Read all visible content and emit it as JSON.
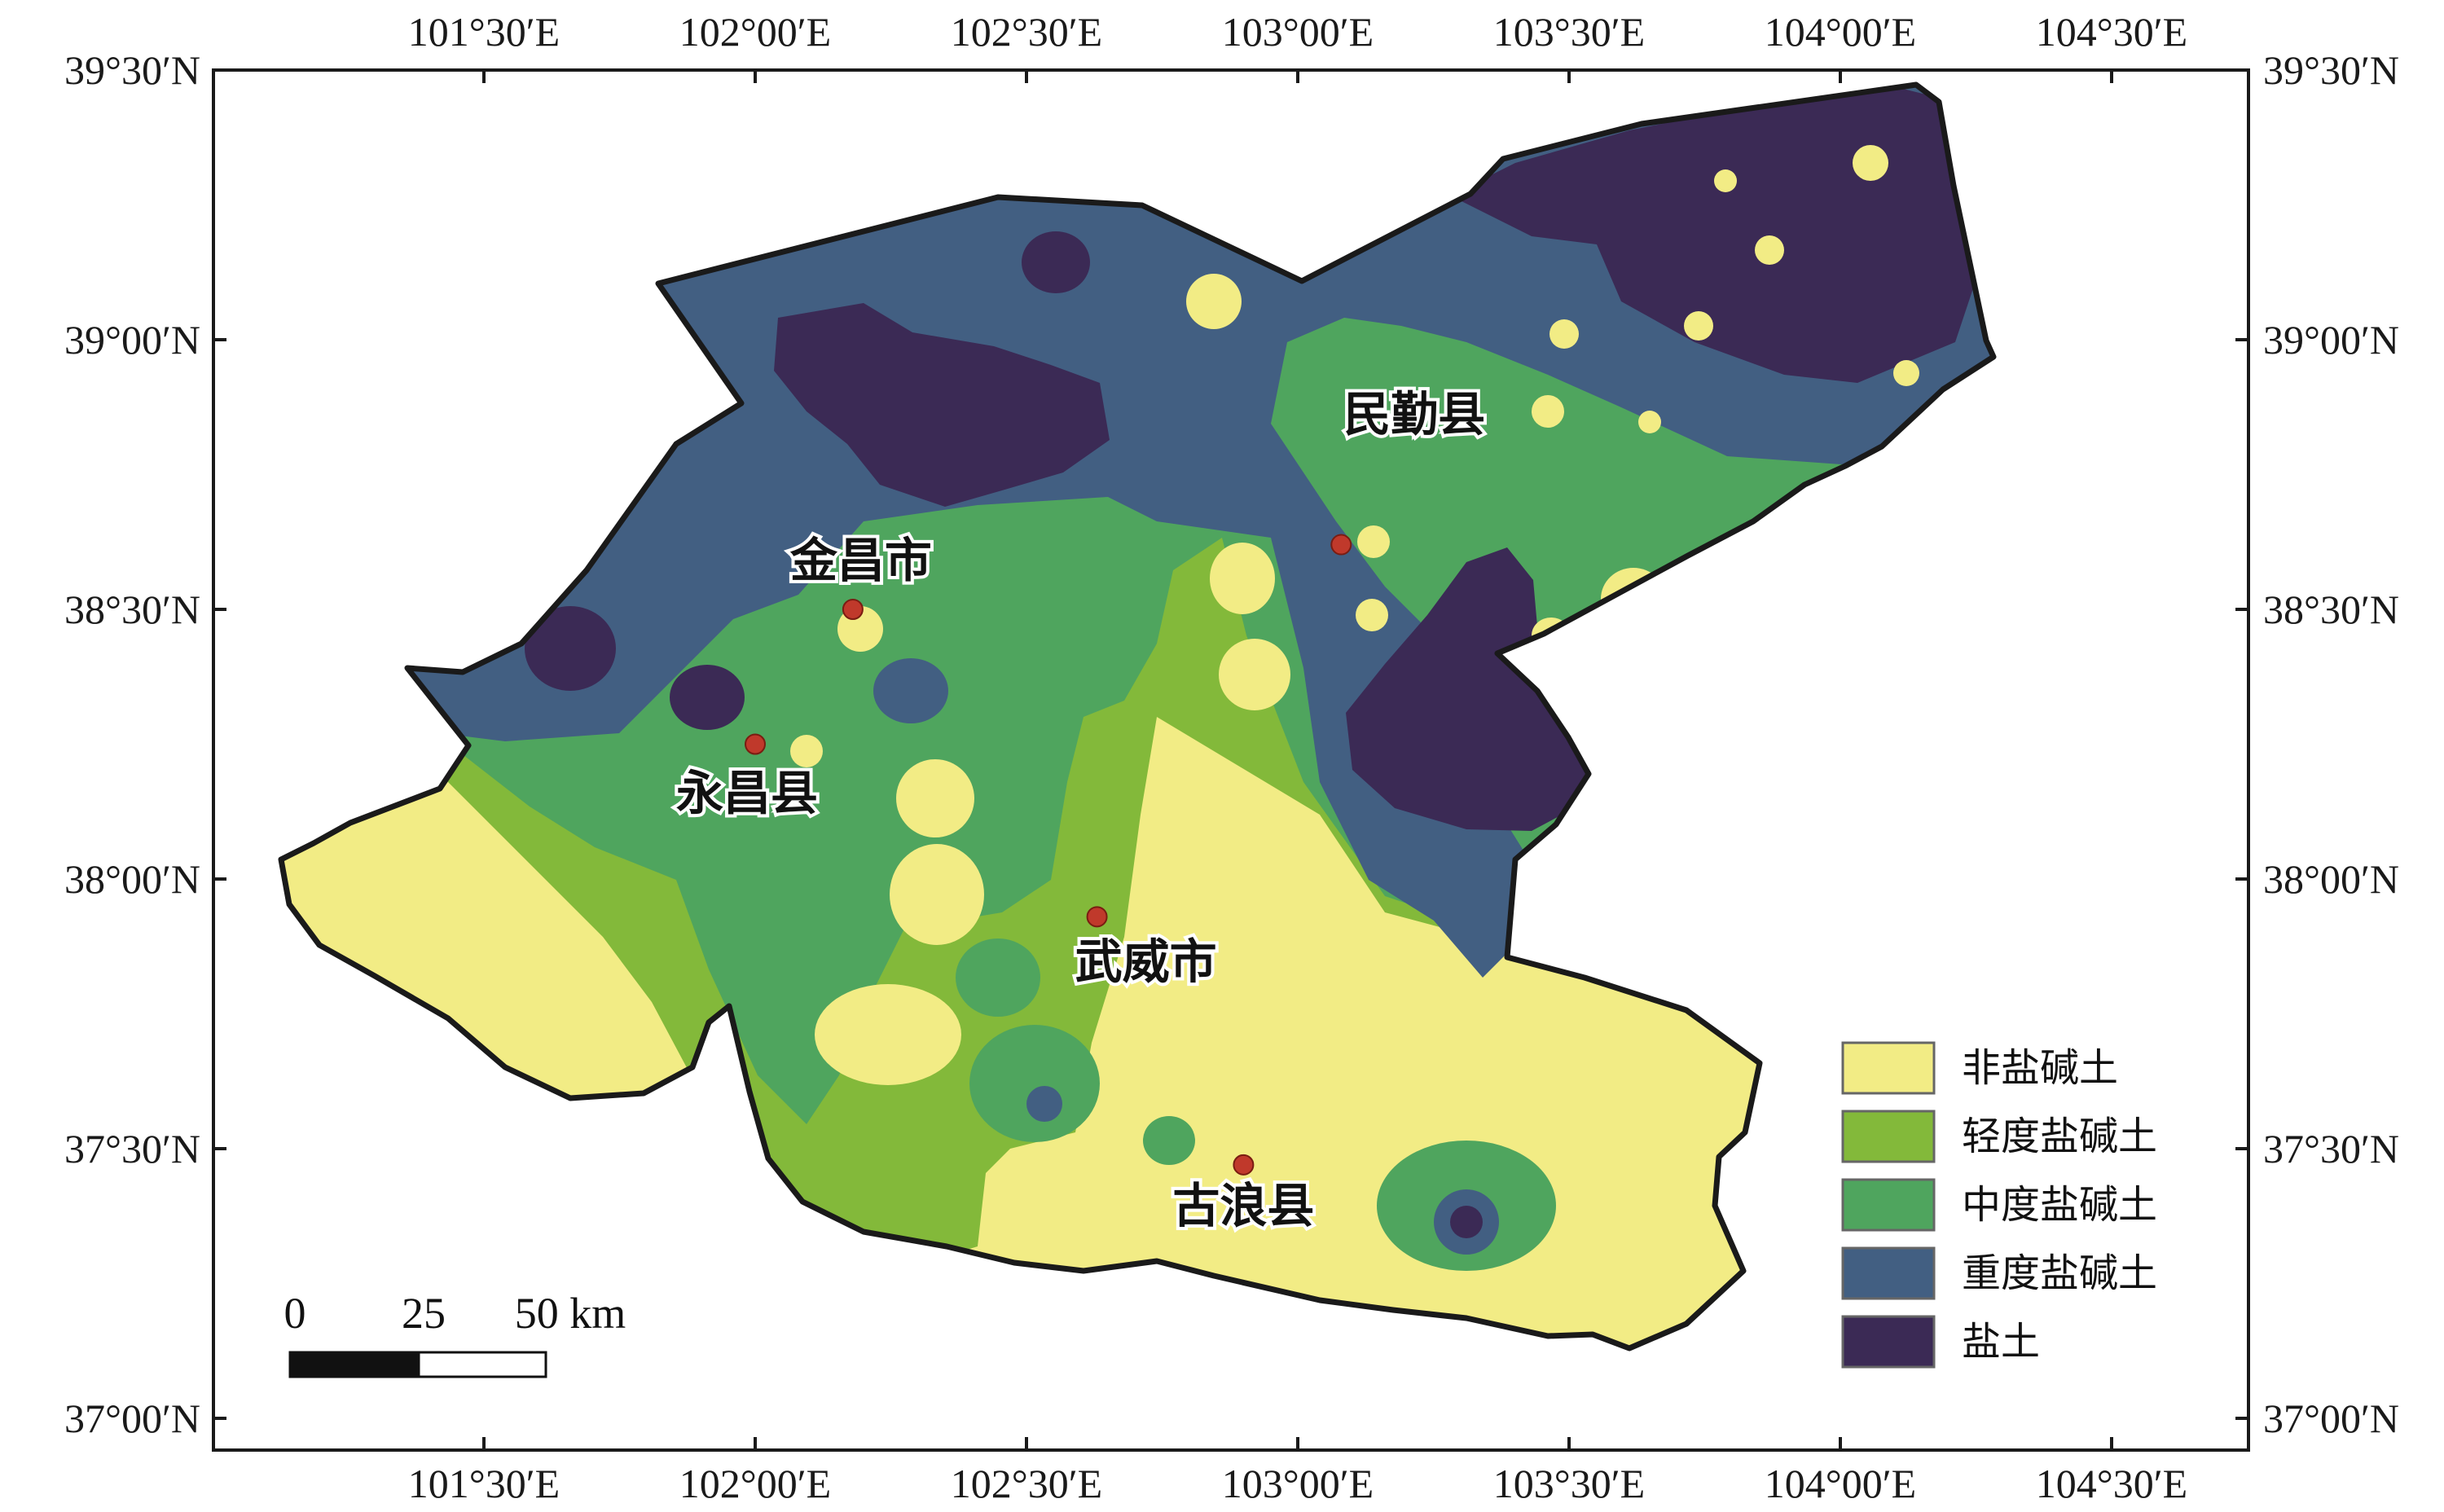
{
  "map": {
    "lon_labels": [
      "101°30′E",
      "102°00′E",
      "102°30′E",
      "103°00′E",
      "103°30′E",
      "104°00′E",
      "104°30′E"
    ],
    "lat_labels": [
      "39°30′N",
      "39°00′N",
      "38°30′N",
      "38°00′N",
      "37°30′N",
      "37°00′N"
    ],
    "cities": [
      {
        "name": "金昌市",
        "lon": 102.18,
        "lat": 38.5
      },
      {
        "name": "永昌县",
        "lon": 102.0,
        "lat": 38.25
      },
      {
        "name": "民勤县",
        "lon": 103.08,
        "lat": 38.62
      },
      {
        "name": "武威市",
        "lon": 102.63,
        "lat": 37.93
      },
      {
        "name": "古浪县",
        "lon": 102.9,
        "lat": 37.47
      }
    ],
    "scale_bar": {
      "labels": [
        "0",
        "25",
        "50 km"
      ]
    },
    "legend": [
      {
        "label": "非盐碱土",
        "color": "#f2ec85"
      },
      {
        "label": "轻度盐碱土",
        "color": "#83b93a"
      },
      {
        "label": "中度盐碱土",
        "color": "#4fa55e"
      },
      {
        "label": "重度盐碱土",
        "color": "#425f82"
      },
      {
        "label": "盐土",
        "color": "#3b2a55"
      }
    ],
    "colors": {
      "border": "#1a1a1a",
      "city_marker": "#c0392b"
    }
  }
}
